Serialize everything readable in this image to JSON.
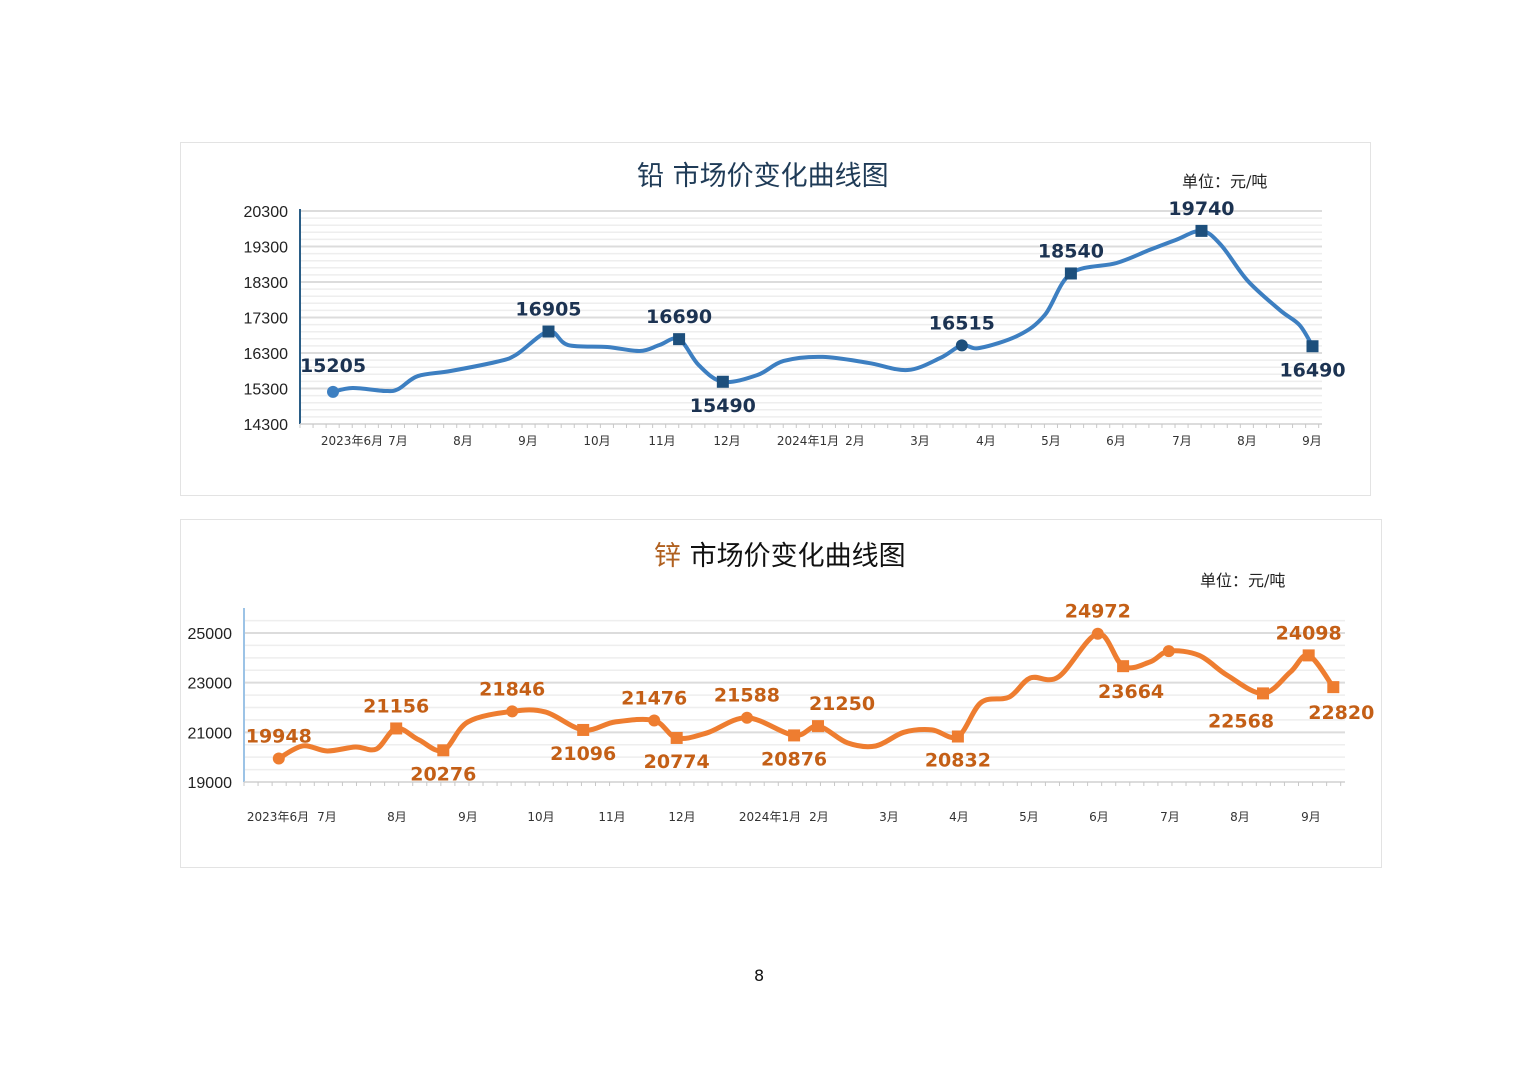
{
  "page_number": "8",
  "chart_data": [
    {
      "type": "line",
      "title_metal": "铅",
      "title_rest": "市场价变化曲线图",
      "unit": "单位：元/吨",
      "ylim": [
        14300,
        20300
      ],
      "yticks": [
        "20300",
        "19300",
        "18300",
        "17300",
        "16300",
        "15300",
        "14300"
      ],
      "ytick_values": [
        20300,
        19300,
        18300,
        17300,
        16300,
        15300,
        14300
      ],
      "xlabels": [
        "2023年6月",
        "7月",
        "8月",
        "9月",
        "10月",
        "11月",
        "12月",
        "2024年1月",
        "2月",
        "3月",
        "4月",
        "5月",
        "6月",
        "7月",
        "8月",
        "9月"
      ],
      "color_line": "#3d7fc1",
      "color_marker": "#1d4f7c",
      "color_label": "#1c3352",
      "title_color": "#1f3b57",
      "metal_color": "#1f3b57",
      "curve": [
        [
          0,
          15205
        ],
        [
          0.3,
          15314
        ],
        [
          0.8,
          15230
        ],
        [
          1,
          15285
        ],
        [
          1.3,
          15650
        ],
        [
          1.8,
          15793
        ],
        [
          2.5,
          16050
        ],
        [
          2.8,
          16245
        ],
        [
          3.3,
          16905
        ],
        [
          3.6,
          16525
        ],
        [
          4.2,
          16470
        ],
        [
          4.7,
          16356
        ],
        [
          5.0,
          16525
        ],
        [
          5.3,
          16690
        ],
        [
          5.6,
          15960
        ],
        [
          5.97,
          15490
        ],
        [
          6.5,
          15680
        ],
        [
          6.9,
          16075
        ],
        [
          7.5,
          16190
        ],
        [
          8.2,
          16020
        ],
        [
          8.8,
          15820
        ],
        [
          9.3,
          16160
        ],
        [
          9.63,
          16515
        ],
        [
          9.9,
          16440
        ],
        [
          10.5,
          16800
        ],
        [
          10.9,
          17370
        ],
        [
          11.3,
          18540
        ],
        [
          12.0,
          18835
        ],
        [
          12.5,
          19200
        ],
        [
          12.9,
          19480
        ],
        [
          13.3,
          19740
        ],
        [
          13.6,
          19340
        ],
        [
          14.0,
          18350
        ],
        [
          14.5,
          17510
        ],
        [
          14.8,
          17090
        ],
        [
          15.0,
          16490
        ]
      ],
      "points": [
        {
          "x": 0,
          "value": 15205,
          "label": "15205",
          "marker": "circle",
          "pos": "above"
        },
        {
          "x": 3.3,
          "value": 16905,
          "label": "16905",
          "marker": "square",
          "pos": "above"
        },
        {
          "x": 5.3,
          "value": 16690,
          "label": "16690",
          "marker": "square",
          "pos": "above"
        },
        {
          "x": 5.97,
          "value": 15490,
          "label": "15490",
          "marker": "square",
          "pos": "below"
        },
        {
          "x": 9.63,
          "value": 16515,
          "label": "16515",
          "marker": "circle",
          "pos": "above"
        },
        {
          "x": 11.3,
          "value": 18540,
          "label": "18540",
          "marker": "square",
          "pos": "above"
        },
        {
          "x": 13.3,
          "value": 19740,
          "label": "19740",
          "marker": "square",
          "pos": "above"
        },
        {
          "x": 15.0,
          "value": 16490,
          "label": "16490",
          "marker": "square",
          "pos": "below"
        }
      ]
    },
    {
      "type": "line",
      "title_metal": "锌",
      "title_rest": "市场价变化曲线图",
      "unit": "单位：元/吨",
      "ylim": [
        19000,
        25000
      ],
      "yticks": [
        "25000",
        "23000",
        "21000",
        "19000"
      ],
      "ytick_values": [
        25000,
        23000,
        21000,
        19000
      ],
      "xlabels": [
        "2023年6月",
        "7月",
        "8月",
        "9月",
        "10月",
        "11月",
        "12月",
        "2024年1月",
        "2月",
        "3月",
        "4月",
        "5月",
        "6月",
        "7月",
        "8月",
        "9月"
      ],
      "color_line": "#ee7d30",
      "color_marker": "#ee7d30",
      "color_label": "#c45f16",
      "title_color": "#111111",
      "metal_color": "#b0601f",
      "curve": [
        [
          0.31,
          19948
        ],
        [
          0.65,
          20453
        ],
        [
          1.0,
          20250
        ],
        [
          1.4,
          20410
        ],
        [
          1.7,
          20330
        ],
        [
          1.98,
          21156
        ],
        [
          2.3,
          20700
        ],
        [
          2.65,
          20276
        ],
        [
          3.0,
          21420
        ],
        [
          3.63,
          21846
        ],
        [
          4.1,
          21820
        ],
        [
          4.64,
          21096
        ],
        [
          5.1,
          21420
        ],
        [
          5.65,
          21476
        ],
        [
          5.97,
          20774
        ],
        [
          6.4,
          20975
        ],
        [
          6.97,
          21588
        ],
        [
          7.64,
          20876
        ],
        [
          7.98,
          21250
        ],
        [
          8.4,
          20575
        ],
        [
          8.8,
          20450
        ],
        [
          9.2,
          21000
        ],
        [
          9.6,
          21100
        ],
        [
          9.97,
          20832
        ],
        [
          10.3,
          22200
        ],
        [
          10.7,
          22420
        ],
        [
          11.0,
          23190
        ],
        [
          11.4,
          23230
        ],
        [
          11.96,
          24972
        ],
        [
          12.32,
          23664
        ],
        [
          12.7,
          23830
        ],
        [
          12.97,
          24270
        ],
        [
          13.4,
          24100
        ],
        [
          13.8,
          23300
        ],
        [
          14.31,
          22568
        ],
        [
          14.7,
          23430
        ],
        [
          14.96,
          24098
        ],
        [
          15.31,
          22820
        ]
      ],
      "points": [
        {
          "x": 0.31,
          "value": 19948,
          "label": "19948",
          "marker": "circle",
          "pos": "above"
        },
        {
          "x": 1.98,
          "value": 21156,
          "label": "21156",
          "marker": "square",
          "pos": "above"
        },
        {
          "x": 2.65,
          "value": 20276,
          "label": "20276",
          "marker": "square",
          "pos": "below"
        },
        {
          "x": 3.63,
          "value": 21846,
          "label": "21846",
          "marker": "circle",
          "pos": "above"
        },
        {
          "x": 4.64,
          "value": 21096,
          "label": "21096",
          "marker": "square",
          "pos": "below"
        },
        {
          "x": 5.65,
          "value": 21476,
          "label": "21476",
          "marker": "circle",
          "pos": "above"
        },
        {
          "x": 5.97,
          "value": 20774,
          "label": "20774",
          "marker": "square",
          "pos": "below"
        },
        {
          "x": 6.97,
          "value": 21588,
          "label": "21588",
          "marker": "circle",
          "pos": "above"
        },
        {
          "x": 7.64,
          "value": 20876,
          "label": "20876",
          "marker": "square",
          "pos": "below"
        },
        {
          "x": 7.98,
          "value": 21250,
          "label": "21250",
          "marker": "square",
          "pos": "above-right"
        },
        {
          "x": 9.97,
          "value": 20832,
          "label": "20832",
          "marker": "square",
          "pos": "below"
        },
        {
          "x": 11.96,
          "value": 24972,
          "label": "24972",
          "marker": "circle",
          "pos": "above"
        },
        {
          "x": 12.32,
          "value": 23664,
          "label": "23664",
          "marker": "square",
          "pos": "below"
        },
        {
          "x": 12.97,
          "value": 24270,
          "label": "",
          "marker": "circle",
          "pos": "none"
        },
        {
          "x": 14.31,
          "value": 22568,
          "label": "22568",
          "marker": "square",
          "pos": "below-left"
        },
        {
          "x": 14.96,
          "value": 24098,
          "label": "24098",
          "marker": "square",
          "pos": "above"
        },
        {
          "x": 15.31,
          "value": 22820,
          "label": "22820",
          "marker": "square",
          "pos": "below"
        }
      ]
    }
  ]
}
